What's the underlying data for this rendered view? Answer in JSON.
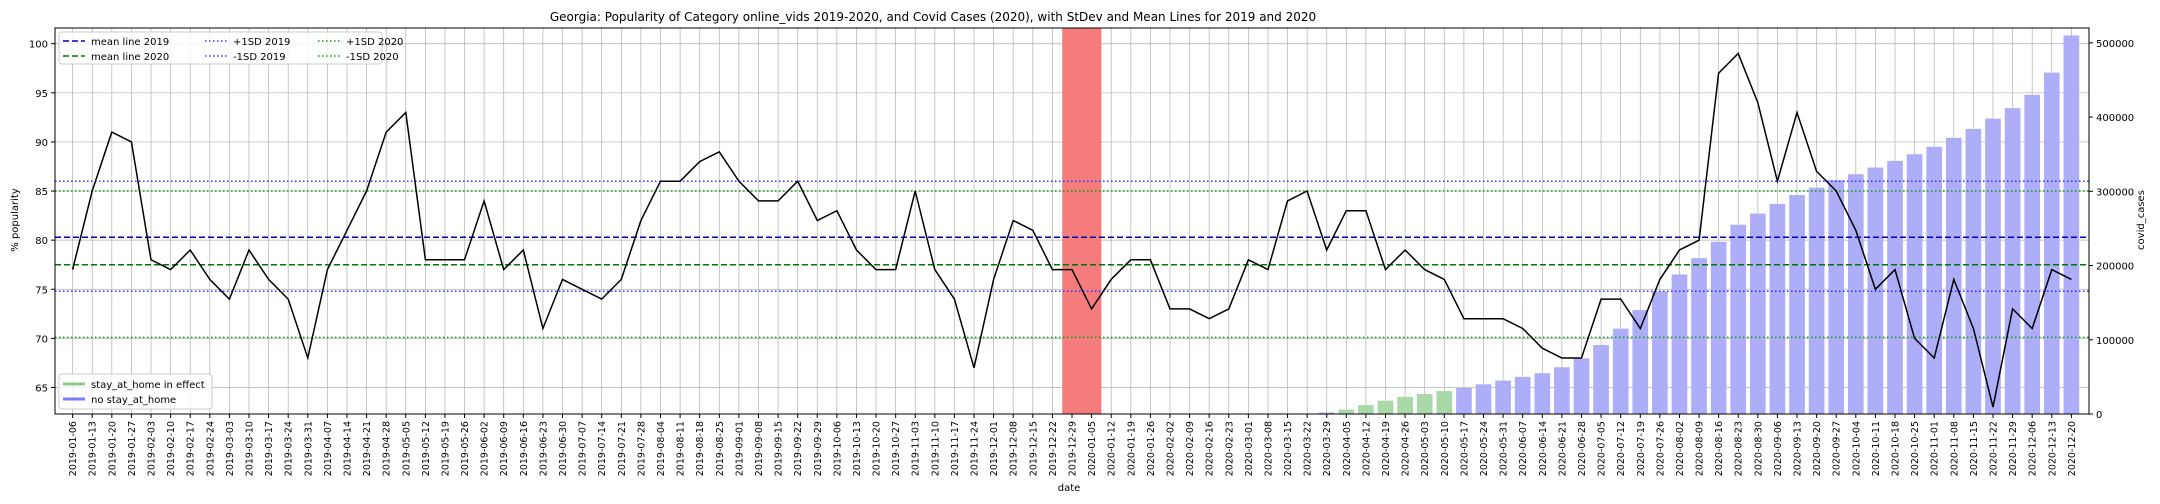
{
  "chart_data": {
    "type": "line",
    "title": "Georgia: Popularity of Category online_vids 2019-2020, and Covid Cases (2020), with StDev and Mean Lines for 2019 and 2020",
    "xlabel": "date",
    "ylabel": "% popularity",
    "y2label": "covid_cases",
    "ylim": [
      62.3,
      101.6
    ],
    "y2lim": [
      0,
      520000
    ],
    "yticks": [
      65,
      70,
      75,
      80,
      85,
      90,
      95,
      100
    ],
    "y2ticks": [
      0,
      100000,
      200000,
      300000,
      400000,
      500000
    ],
    "y2tick_labels": [
      "0",
      "100000",
      "200000",
      "300000",
      "400000",
      "500000"
    ],
    "grid": true,
    "x": [
      "2019-01-06",
      "2019-01-13",
      "2019-01-20",
      "2019-01-27",
      "2019-02-03",
      "2019-02-10",
      "2019-02-17",
      "2019-02-24",
      "2019-03-03",
      "2019-03-10",
      "2019-03-17",
      "2019-03-24",
      "2019-03-31",
      "2019-04-07",
      "2019-04-14",
      "2019-04-21",
      "2019-04-28",
      "2019-05-05",
      "2019-05-12",
      "2019-05-19",
      "2019-05-26",
      "2019-06-02",
      "2019-06-09",
      "2019-06-16",
      "2019-06-23",
      "2019-06-30",
      "2019-07-07",
      "2019-07-14",
      "2019-07-21",
      "2019-07-28",
      "2019-08-04",
      "2019-08-11",
      "2019-08-18",
      "2019-08-25",
      "2019-09-01",
      "2019-09-08",
      "2019-09-15",
      "2019-09-22",
      "2019-09-29",
      "2019-10-06",
      "2019-10-13",
      "2019-10-20",
      "2019-10-27",
      "2019-11-03",
      "2019-11-10",
      "2019-11-17",
      "2019-11-24",
      "2019-12-01",
      "2019-12-08",
      "2019-12-15",
      "2019-12-22",
      "2019-12-29",
      "2020-01-05",
      "2020-01-12",
      "2020-01-19",
      "2020-01-26",
      "2020-02-02",
      "2020-02-09",
      "2020-02-16",
      "2020-02-23",
      "2020-03-01",
      "2020-03-08",
      "2020-03-15",
      "2020-03-22",
      "2020-03-29",
      "2020-04-05",
      "2020-04-12",
      "2020-04-19",
      "2020-04-26",
      "2020-05-03",
      "2020-05-10",
      "2020-05-17",
      "2020-05-24",
      "2020-05-31",
      "2020-06-07",
      "2020-06-14",
      "2020-06-21",
      "2020-06-28",
      "2020-07-05",
      "2020-07-12",
      "2020-07-19",
      "2020-07-26",
      "2020-08-02",
      "2020-08-09",
      "2020-08-16",
      "2020-08-23",
      "2020-08-30",
      "2020-09-06",
      "2020-09-13",
      "2020-09-20",
      "2020-09-27",
      "2020-10-04",
      "2020-10-11",
      "2020-10-18",
      "2020-10-25",
      "2020-11-01",
      "2020-11-08",
      "2020-11-15",
      "2020-11-22",
      "2020-11-29",
      "2020-12-06",
      "2020-12-13",
      "2020-12-20"
    ],
    "xtick_labels": [
      "2019-01-06",
      "2019-01-13",
      "2019-01-20",
      "2019-01-27",
      "2019-02-03",
      "2019-02-10",
      "2019-02-17",
      "2019-02-24",
      "2019-03-03",
      "2019-03-10",
      "2019-03-17",
      "2019-03-24",
      "2019-03-31",
      "2019-04-07",
      "2019-04-14",
      "2019-04-21",
      "2019-04-28",
      "2019-05-05",
      "2019-05-12",
      "2019-05-19",
      "2019-05-26",
      "2019-06-02",
      "2019-06-09",
      "2019-06-16",
      "2019-06-23",
      "2019-06-30",
      "2019-07-07",
      "2019-07-14",
      "2019-07-21",
      "2019-07-28",
      "2019-08-04",
      "2019-08-11",
      "2019-08-18",
      "2019-08-25",
      "2019-09-01",
      "2019-09-08",
      "2019-09-15",
      "2019-09-22",
      "2019-09-29",
      "2019-10-06",
      "2019-10-13",
      "2019-10-20",
      "2019-10-27",
      "2019-11-03",
      "2019-11-10",
      "2019-11-17",
      "2019-11-24",
      "2019-12-01",
      "2019-12-08",
      "2019-12-15",
      "2019-12-22",
      "2019-12-29",
      "2020-01-05",
      "2020-01-12",
      "2020-01-19",
      "2020-01-26",
      "2020-02-02",
      "2020-02-09",
      "2020-02-16",
      "2020-02-23",
      "2020-03-01",
      "2020-03-08",
      "2020-03-15",
      "2020-03-22",
      "2020-03-29",
      "2020-04-05",
      "2020-04-12",
      "2020-04-19",
      "2020-04-26",
      "2020-05-03",
      "2020-05-10",
      "2020-05-17",
      "2020-05-24",
      "2020-05-31",
      "2020-06-07",
      "2020-06-14",
      "2020-06-21",
      "2020-06-28",
      "2020-07-05",
      "2020-07-12",
      "2020-07-19",
      "2020-07-26",
      "2020-08-02",
      "2020-08-09",
      "2020-08-16",
      "2020-08-23",
      "2020-08-30",
      "2020-09-06",
      "2020-09-13",
      "2020-09-20",
      "2020-09-27",
      "2020-10-04",
      "2020-10-11",
      "2020-10-18",
      "2020-10-25",
      "2020-11-01",
      "2020-11-08",
      "2020-11-15",
      "2020-11-22",
      "2020-11-29",
      "2020-12-06",
      "2020-12-13",
      "2020-12-20"
    ],
    "popularity": [
      77,
      85,
      91,
      90,
      78,
      77,
      79,
      76,
      74,
      79,
      76,
      74,
      68,
      77,
      81,
      85,
      91,
      93,
      78,
      78,
      78,
      84,
      77,
      79,
      71,
      76,
      75,
      74,
      76,
      82,
      86,
      86,
      88,
      89,
      86,
      84,
      84,
      86,
      82,
      83,
      79,
      77,
      77,
      85,
      77,
      74,
      67,
      76,
      82,
      81,
      77,
      77,
      73,
      76,
      78,
      78,
      73,
      73,
      72,
      73,
      78,
      77,
      84,
      85,
      79,
      83,
      83,
      77,
      79,
      77,
      76,
      72,
      72,
      72,
      71,
      69,
      68,
      68,
      74,
      74,
      71,
      76,
      79,
      80,
      97,
      99,
      94,
      86,
      93,
      87,
      85,
      81,
      75,
      77,
      70,
      68,
      76,
      71,
      63,
      73,
      71,
      77,
      76
    ],
    "covid_cases": [
      0,
      0,
      0,
      0,
      0,
      0,
      0,
      0,
      0,
      0,
      0,
      0,
      0,
      0,
      0,
      0,
      0,
      0,
      0,
      0,
      0,
      0,
      0,
      0,
      0,
      0,
      0,
      0,
      0,
      0,
      0,
      0,
      0,
      0,
      0,
      0,
      0,
      0,
      0,
      0,
      0,
      0,
      0,
      0,
      0,
      0,
      0,
      0,
      0,
      0,
      0,
      0,
      0,
      0,
      0,
      0,
      0,
      0,
      0,
      0,
      0,
      0,
      0,
      0,
      2000,
      6000,
      12000,
      18000,
      23000,
      27000,
      31000,
      35000,
      40000,
      45000,
      50000,
      55000,
      63000,
      75000,
      93000,
      115000,
      140000,
      165000,
      188000,
      210000,
      232000,
      255000,
      270000,
      283000,
      295000,
      305000,
      315000,
      323000,
      332000,
      341000,
      350000,
      360000,
      372000,
      384000,
      398000,
      412000,
      430000,
      460000,
      510000
    ],
    "stay_at_home_dates": [
      "2020-04-05",
      "2020-04-12",
      "2020-04-19",
      "2020-04-26",
      "2020-05-03",
      "2020-05-10"
    ],
    "highlight_dates": [
      "2019-12-29",
      "2020-01-05"
    ],
    "reference_lines": {
      "mean_2019": 80.3,
      "plus_1sd_2019": 86.0,
      "minus_1sd_2019": 74.8,
      "mean_2020": 77.5,
      "plus_1sd_2020": 85.0,
      "minus_1sd_2020": 70.1
    },
    "legend_top": [
      {
        "label": "mean line 2019",
        "color": "#0000bb",
        "dash": "6,3"
      },
      {
        "label": "mean line 2020",
        "color": "#007700",
        "dash": "6,3"
      },
      {
        "label": "+1SD 2019",
        "color": "#3333ff",
        "dash": "1.5,2.5"
      },
      {
        "label": "-1SD 2019",
        "color": "#3333ff",
        "dash": "1.5,2.5"
      },
      {
        "label": "+1SD 2020",
        "color": "#119911",
        "dash": "1.5,2.5"
      },
      {
        "label": "-1SD 2020",
        "color": "#119911",
        "dash": "1.5,2.5"
      }
    ],
    "legend_bottom": [
      {
        "label": "stay_at_home in effect",
        "color": "#8fc98f"
      },
      {
        "label": "no stay_at_home",
        "color": "#7b7bf5"
      }
    ],
    "colors": {
      "line": "#000000",
      "bar_stay": "#a9d9a9",
      "bar_no_stay": "#aeaef8",
      "highlight": "#f47c7c",
      "grid": "#b0b0b0"
    }
  }
}
